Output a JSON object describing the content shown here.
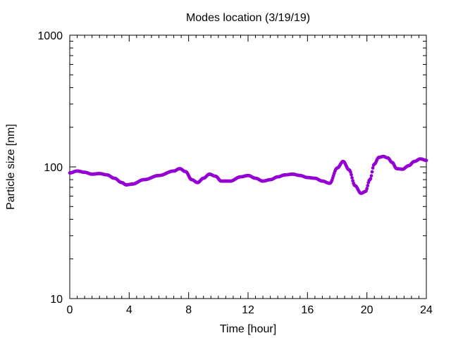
{
  "chart_data": {
    "type": "scatter",
    "title": "Modes location (3/19/19)",
    "xlabel": "Time [hour]",
    "ylabel": "Particle size [nm]",
    "xlim": [
      0,
      24
    ],
    "ylim": [
      10,
      1000
    ],
    "yscale": "log",
    "grid": false,
    "legend": "none",
    "marker_color": "#9400d3",
    "x_ticks": [
      {
        "value": 0,
        "label": "0"
      },
      {
        "value": 4,
        "label": "4"
      },
      {
        "value": 8,
        "label": "8"
      },
      {
        "value": 12,
        "label": "12"
      },
      {
        "value": 16,
        "label": "16"
      },
      {
        "value": 20,
        "label": "20"
      },
      {
        "value": 24,
        "label": "24"
      }
    ],
    "y_ticks": [
      {
        "value": 10,
        "label": "10"
      },
      {
        "value": 100,
        "label": "100"
      },
      {
        "value": 1000,
        "label": "1000"
      }
    ],
    "series": [
      {
        "x": [
          0,
          0.5,
          1,
          1.5,
          2,
          2.5,
          3,
          3.5,
          3.8,
          4.2,
          5,
          6,
          7,
          7.4,
          7.8,
          8.2,
          8.6,
          9,
          9.4,
          9.8,
          10.2,
          10.8,
          11.5,
          12,
          12.5,
          13,
          13.5,
          14,
          14.5,
          15,
          15.5,
          16,
          16.5,
          17,
          17.5,
          18,
          18.4,
          18.8,
          19.2,
          19.6,
          19.9,
          20.2,
          20.5,
          20.8,
          21.1,
          21.4,
          21.7,
          22,
          22.4,
          22.8,
          23.2,
          23.6,
          24
        ],
        "y": [
          90,
          93,
          91,
          88,
          89,
          87,
          82,
          76,
          73,
          74,
          80,
          86,
          93,
          97,
          92,
          80,
          76,
          82,
          88,
          85,
          78,
          78,
          84,
          86,
          82,
          78,
          80,
          84,
          87,
          88,
          86,
          83,
          82,
          78,
          75,
          98,
          110,
          95,
          72,
          63,
          65,
          80,
          105,
          118,
          120,
          117,
          108,
          97,
          96,
          102,
          110,
          115,
          112
        ]
      }
    ]
  }
}
